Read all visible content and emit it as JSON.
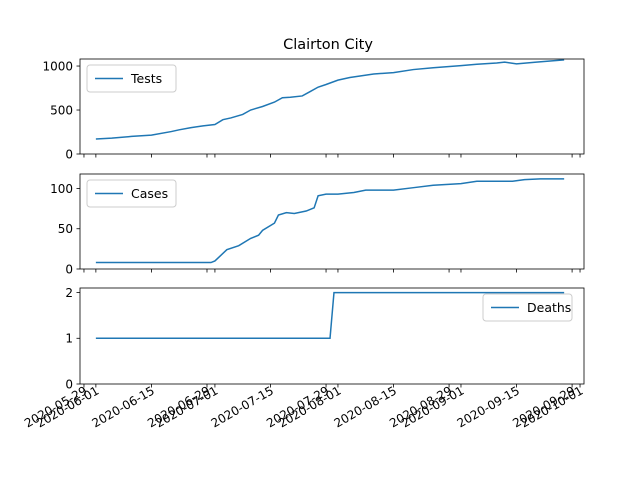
{
  "chart_data": {
    "type": "line",
    "title": "Clairton City",
    "x_ticks": [
      "2020-05-29",
      "2020-06-01",
      "2020-06-15",
      "2020-06-29",
      "2020-07-01",
      "2020-07-15",
      "2020-07-29",
      "2020-08-01",
      "2020-08-15",
      "2020-08-29",
      "2020-09-01",
      "2020-09-15",
      "2020-09-29",
      "2020-10-01"
    ],
    "xlim": [
      "2020-05-28",
      "2020-10-02"
    ],
    "grid": false,
    "color": "#1f77b4",
    "panels": [
      {
        "name": "Tests",
        "legend_position": "upper left",
        "ylim": [
          0,
          1080
        ],
        "y_ticks": [
          0,
          500,
          1000
        ],
        "x": [
          "2020-06-01",
          "2020-06-05",
          "2020-06-10",
          "2020-06-15",
          "2020-06-20",
          "2020-06-22",
          "2020-06-25",
          "2020-06-28",
          "2020-07-01",
          "2020-07-03",
          "2020-07-05",
          "2020-07-08",
          "2020-07-10",
          "2020-07-13",
          "2020-07-16",
          "2020-07-18",
          "2020-07-20",
          "2020-07-23",
          "2020-07-25",
          "2020-07-27",
          "2020-07-29",
          "2020-08-01",
          "2020-08-04",
          "2020-08-07",
          "2020-08-10",
          "2020-08-15",
          "2020-08-20",
          "2020-08-25",
          "2020-09-01",
          "2020-09-05",
          "2020-09-10",
          "2020-09-12",
          "2020-09-15",
          "2020-09-20",
          "2020-09-27"
        ],
        "values": [
          170,
          180,
          200,
          215,
          255,
          275,
          300,
          320,
          335,
          390,
          410,
          450,
          500,
          540,
          590,
          640,
          645,
          660,
          710,
          760,
          790,
          840,
          870,
          890,
          910,
          925,
          960,
          980,
          1005,
          1020,
          1035,
          1045,
          1025,
          1045,
          1070
        ]
      },
      {
        "name": "Cases",
        "legend_position": "upper left",
        "ylim": [
          0,
          118
        ],
        "y_ticks": [
          0,
          50,
          100
        ],
        "x": [
          "2020-06-01",
          "2020-06-30",
          "2020-07-01",
          "2020-07-04",
          "2020-07-07",
          "2020-07-10",
          "2020-07-12",
          "2020-07-13",
          "2020-07-16",
          "2020-07-17",
          "2020-07-19",
          "2020-07-21",
          "2020-07-24",
          "2020-07-26",
          "2020-07-27",
          "2020-07-29",
          "2020-08-01",
          "2020-08-05",
          "2020-08-08",
          "2020-08-15",
          "2020-08-20",
          "2020-08-25",
          "2020-09-01",
          "2020-09-05",
          "2020-09-14",
          "2020-09-17",
          "2020-09-21",
          "2020-09-27"
        ],
        "values": [
          8,
          8,
          10,
          24,
          29,
          38,
          42,
          48,
          57,
          67,
          70,
          69,
          72,
          76,
          91,
          93,
          93,
          95,
          98,
          98,
          101,
          104,
          106,
          109,
          109,
          111,
          112,
          112
        ]
      },
      {
        "name": "Deaths",
        "legend_position": "upper right",
        "ylim": [
          0,
          2.1
        ],
        "y_ticks": [
          0,
          1,
          2
        ],
        "x": [
          "2020-06-01",
          "2020-07-30",
          "2020-07-31",
          "2020-09-27"
        ],
        "values": [
          1,
          1,
          2,
          2
        ]
      }
    ]
  }
}
